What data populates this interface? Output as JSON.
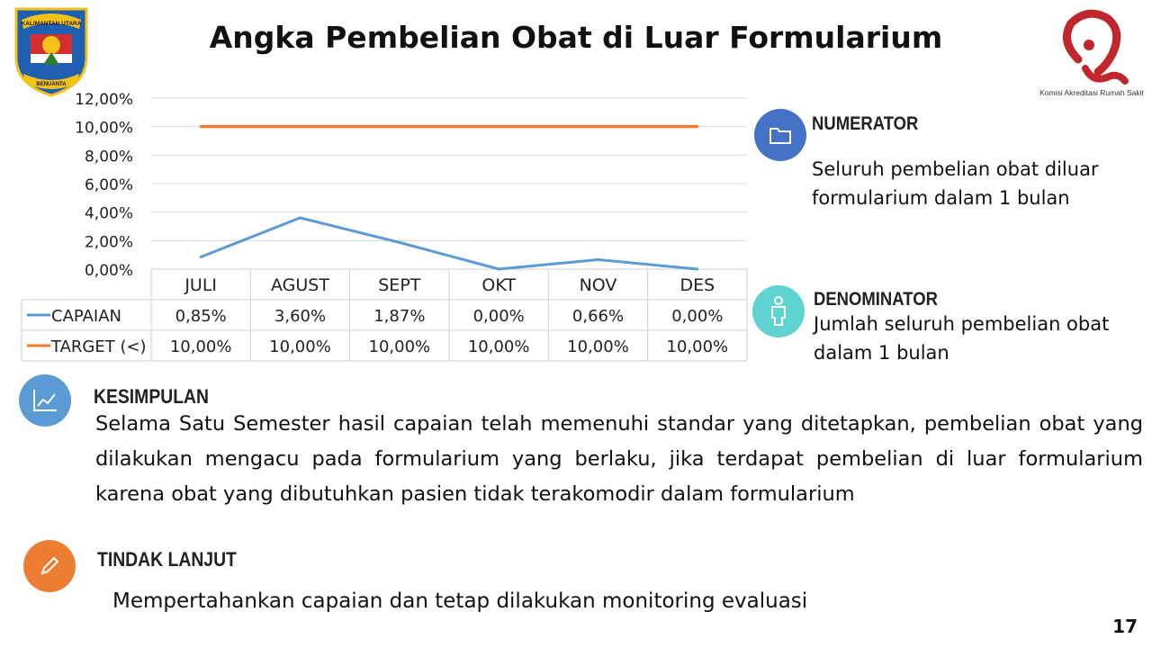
{
  "title": "Angka Pembelian Obat di Luar Formularium",
  "logo_left": {
    "icon": "kalimantan-utara-emblem-icon",
    "banner_text": "KALIMANTAN UTARA",
    "motto": "BENUANTA"
  },
  "logo_right": {
    "icon": "kars-logo-icon",
    "caption": "Komisi Akreditasi Rumah Sakit",
    "color": "#c0272d"
  },
  "chart_data": {
    "type": "line",
    "categories": [
      "JULI",
      "AGUST",
      "SEPT",
      "OKT",
      "NOV",
      "DES"
    ],
    "y_ticks": [
      "12,00%",
      "10,00%",
      "8,00%",
      "6,00%",
      "4,00%",
      "2,00%",
      "0,00%"
    ],
    "ylim": [
      0,
      12
    ],
    "grid": true,
    "legend": "data-table-below",
    "series": [
      {
        "name": "CAPAIAN",
        "values": [
          0.85,
          3.6,
          1.87,
          0.0,
          0.66,
          0.0
        ],
        "labels": [
          "0,85%",
          "3,60%",
          "1,87%",
          "0,00%",
          "0,66%",
          "0,00%"
        ],
        "color": "#5b9bd5"
      },
      {
        "name": "TARGET (<)",
        "values": [
          10,
          10,
          10,
          10,
          10,
          10
        ],
        "labels": [
          "10,00%",
          "10,00%",
          "10,00%",
          "10,00%",
          "10,00%",
          "10,00%"
        ],
        "color": "#ed7d31"
      }
    ]
  },
  "numerator": {
    "heading": "NUMERATOR",
    "lines": [
      "Seluruh pembelian obat diluar",
      "formularium dalam 1 bulan"
    ],
    "icon": "folder-icon",
    "color": "#4472c4"
  },
  "denominator": {
    "heading": "DENOMINATOR",
    "lines": [
      "Jumlah seluruh pembelian obat",
      "dalam 1 bulan"
    ],
    "icon": "person-icon",
    "color": "#5fd3d0"
  },
  "kesimpulan": {
    "heading": "KESIMPULAN",
    "text": "Selama Satu Semester hasil capaian telah memenuhi standar yang ditetapkan, pembelian obat yang dilakukan mengacu pada formularium yang berlaku, jika terdapat pembelian di luar formularium karena obat yang dibutuhkan pasien tidak terakomodir dalam formularium",
    "icon": "line-chart-icon",
    "color": "#5b9bd5"
  },
  "tindak_lanjut": {
    "heading": "TINDAK LANJUT",
    "text": "Mempertahankan capaian dan tetap dilakukan monitoring evaluasi",
    "icon": "pencil-icon",
    "color": "#ed7d31"
  },
  "page_number": "17"
}
